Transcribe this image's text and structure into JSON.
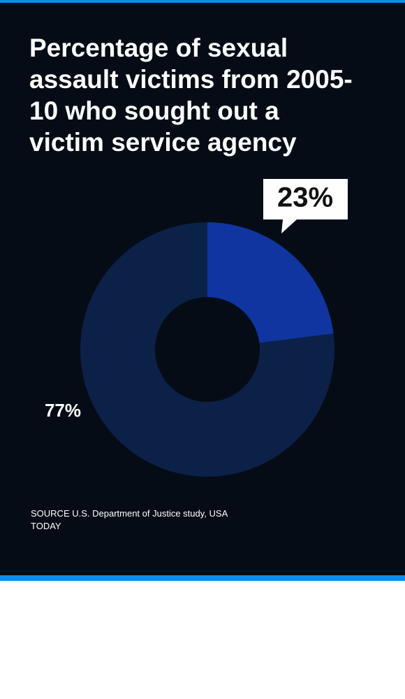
{
  "chart_data": {
    "type": "donut",
    "title": "Percentage of sexual assault victims from 2005-10 who sought out a victim service agency",
    "values": [
      23,
      77
    ],
    "value_labels": [
      "23%",
      "77%"
    ],
    "colors": [
      "#1035a0",
      "#0b2148"
    ],
    "source": "SOURCE U.S. Department of Justice study, USA TODAY"
  }
}
